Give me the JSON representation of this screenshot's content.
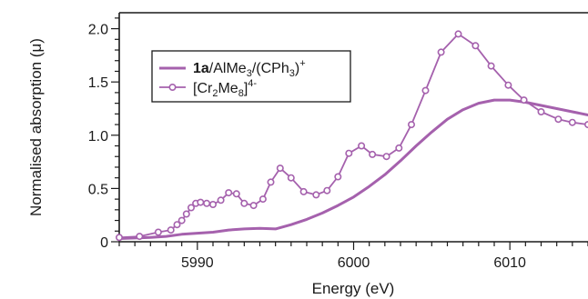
{
  "chart_data": {
    "type": "line",
    "title": "",
    "xlabel": "Energy (eV)",
    "ylabel": "Normalised absorption (μ)",
    "xlim": [
      5985,
      6015
    ],
    "ylim": [
      0,
      2.15
    ],
    "x_major_ticks": [
      5990,
      6000,
      6010
    ],
    "x_tick_labels": [
      "5990",
      "6000",
      "6010"
    ],
    "y_major_ticks": [
      0,
      0.5,
      1.0,
      1.5,
      2.0
    ],
    "y_tick_labels": [
      "0",
      "0.5",
      "1.0",
      "1.5",
      "2.0"
    ],
    "grid": false,
    "legend_position": "top-left",
    "series": [
      {
        "name_parts": {
          "bold": "1a",
          "text1": "/AlMe",
          "sub1": "3",
          "text2": "/(CPh",
          "sub2": "3",
          "text3": ")",
          "sup": "+"
        },
        "color": "#a561ad",
        "style": "line",
        "x": [
          5985,
          5987,
          5988,
          5989,
          5990,
          5991,
          5992,
          5993,
          5994,
          5995,
          5996,
          5997,
          5998,
          5999,
          6000,
          6001,
          6002,
          6003,
          6004,
          6005,
          6006,
          6007,
          6008,
          6009,
          6010,
          6011,
          6012,
          6013,
          6014,
          6015
        ],
        "y": [
          0.03,
          0.04,
          0.05,
          0.07,
          0.08,
          0.09,
          0.11,
          0.12,
          0.125,
          0.12,
          0.16,
          0.21,
          0.27,
          0.34,
          0.42,
          0.52,
          0.63,
          0.76,
          0.9,
          1.03,
          1.15,
          1.24,
          1.3,
          1.33,
          1.33,
          1.31,
          1.28,
          1.25,
          1.22,
          1.19
        ]
      },
      {
        "name_parts": {
          "text1": "[Cr",
          "sub1": "2",
          "text2": "Me",
          "sub2": "8",
          "text3": "]",
          "sup": "4-"
        },
        "color": "#a561ad",
        "style": "line-marker",
        "x": [
          5985,
          5986.3,
          5987.5,
          5988.3,
          5988.7,
          5989.0,
          5989.3,
          5989.6,
          5989.9,
          5990.2,
          5990.6,
          5991.0,
          5991.5,
          5992.0,
          5992.5,
          5993.0,
          5993.6,
          5994.2,
          5994.7,
          5995.3,
          5996.0,
          5996.8,
          5997.6,
          5998.3,
          5999.0,
          5999.7,
          6000.5,
          6001.2,
          6002.1,
          6002.9,
          6003.7,
          6004.6,
          6005.6,
          6006.7,
          6007.8,
          6008.8,
          6009.9,
          6010.9,
          6012.0,
          6013.1,
          6014.0,
          6015.0
        ],
        "y": [
          0.04,
          0.05,
          0.09,
          0.11,
          0.16,
          0.2,
          0.26,
          0.32,
          0.36,
          0.37,
          0.36,
          0.35,
          0.39,
          0.46,
          0.45,
          0.36,
          0.34,
          0.4,
          0.56,
          0.69,
          0.6,
          0.47,
          0.44,
          0.48,
          0.61,
          0.83,
          0.9,
          0.82,
          0.8,
          0.88,
          1.1,
          1.42,
          1.78,
          1.95,
          1.84,
          1.65,
          1.47,
          1.33,
          1.22,
          1.15,
          1.12,
          1.1
        ]
      }
    ]
  }
}
